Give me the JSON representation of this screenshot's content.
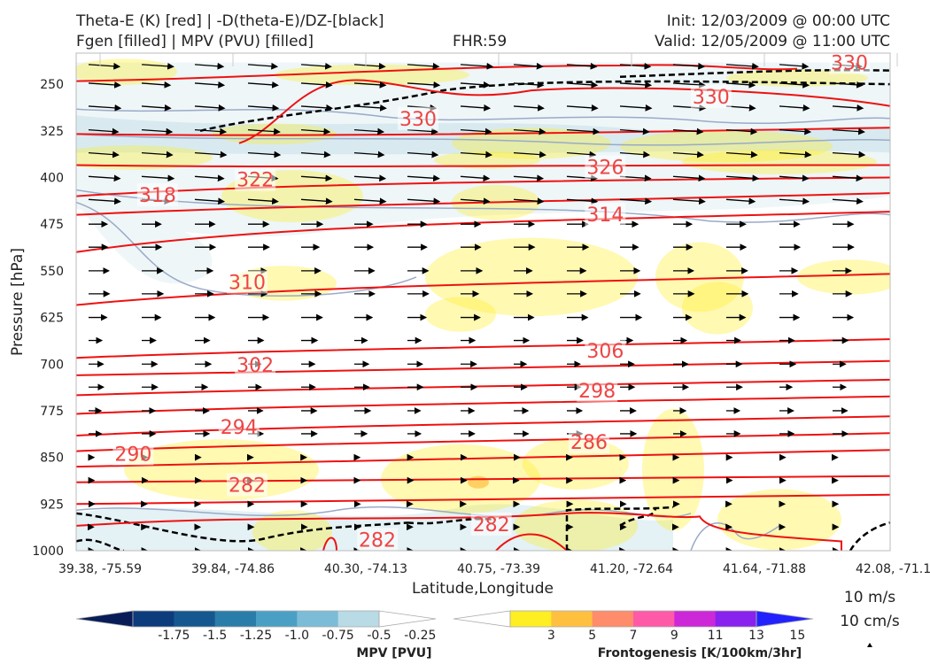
{
  "header": {
    "title_line1": "Theta-E (K) [red] | -D(theta-E)/DZ-[black]",
    "title_line2": "Fgen [filled] | MPV (PVU) [filled]",
    "fhr": "FHR:59",
    "init": "Init: 12/03/2009 @ 00:00 UTC",
    "valid": "Valid: 12/05/2009 @ 11:00 UTC"
  },
  "colors": {
    "theta_e": "#ee1111",
    "stability": "#000000",
    "mpv_contour": "#9aaac8",
    "frame": "#bbbbbb"
  },
  "chart_data": {
    "type": "cross-section",
    "xlabel": "Latitude,Longitude",
    "ylabel": "Pressure [hPa]",
    "x_ticks": [
      "39.38, -75.59",
      "39.84, -74.86",
      "40.30, -74.13",
      "40.75, -73.39",
      "41.20, -72.64",
      "41.64, -71.88",
      "42.08, -71.11"
    ],
    "y_ticks": [
      250,
      325,
      400,
      475,
      550,
      625,
      700,
      775,
      850,
      925,
      1000
    ],
    "ylim": [
      1000,
      200
    ],
    "theta_e_labels": [
      {
        "value": "330",
        "x": 0.42,
        "p": 305
      },
      {
        "value": "330",
        "x": 0.78,
        "p": 270
      },
      {
        "value": "330",
        "x": 0.95,
        "p": 215
      },
      {
        "value": "326",
        "x": 0.65,
        "p": 383
      },
      {
        "value": "322",
        "x": 0.22,
        "p": 403
      },
      {
        "value": "318",
        "x": 0.1,
        "p": 428
      },
      {
        "value": "314",
        "x": 0.65,
        "p": 459
      },
      {
        "value": "310",
        "x": 0.21,
        "p": 568
      },
      {
        "value": "306",
        "x": 0.65,
        "p": 678
      },
      {
        "value": "302",
        "x": 0.22,
        "p": 701
      },
      {
        "value": "298",
        "x": 0.64,
        "p": 742
      },
      {
        "value": "294",
        "x": 0.2,
        "p": 801
      },
      {
        "value": "290",
        "x": 0.07,
        "p": 844
      },
      {
        "value": "286",
        "x": 0.63,
        "p": 825
      },
      {
        "value": "282",
        "x": 0.21,
        "p": 894
      },
      {
        "value": "282",
        "x": 0.51,
        "p": 957
      },
      {
        "value": "282",
        "x": 0.37,
        "p": 982
      }
    ],
    "wind_scale": {
      "line1": "10 m/s",
      "line2": "10 cm/s"
    },
    "colorbars": [
      {
        "name": "MPV [PVU]",
        "ticks": [
          "-1.75",
          "-1.5",
          "-1.25",
          "-1.0",
          "-0.75",
          "-0.5",
          "-0.25"
        ],
        "colors": [
          "#081d58",
          "#0c3c7c",
          "#15588f",
          "#2a7da8",
          "#4aa0c4",
          "#7cbcd6",
          "#b8dbe6",
          "#ffffff"
        ]
      },
      {
        "name": "Frontogenesis [K/100km/3hr]",
        "ticks": [
          "3",
          "5",
          "7",
          "9",
          "11",
          "13",
          "15"
        ],
        "colors": [
          "#ffffff",
          "#ffee22",
          "#ffc040",
          "#ff8c6a",
          "#ff5aa8",
          "#cc28d8",
          "#8822ee",
          "#2222ff"
        ]
      }
    ]
  }
}
